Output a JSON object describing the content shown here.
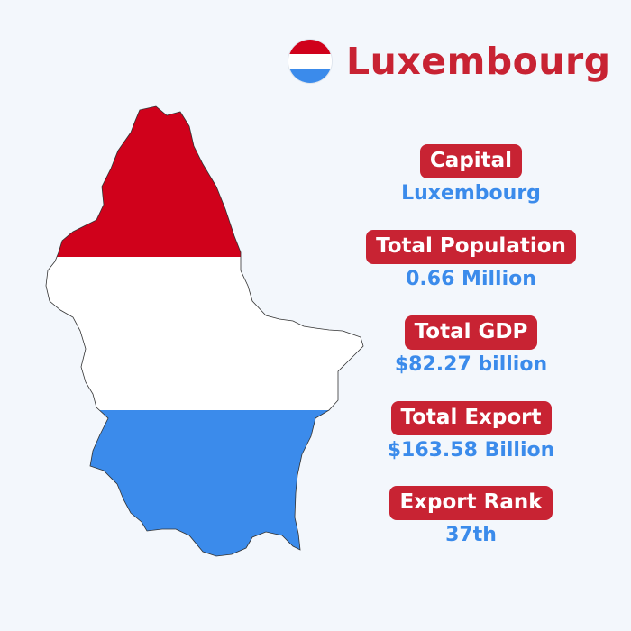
{
  "title": "Luxembourg",
  "flag_colors": {
    "red": "#d0011b",
    "white": "#ffffff",
    "blue": "#3b8beb"
  },
  "colors": {
    "badge": "#c82333",
    "value": "#3b8beb",
    "background": "#f3f7fc"
  },
  "stats": [
    {
      "label": "Capital",
      "value": "Luxembourg"
    },
    {
      "label": "Total Population",
      "value": "0.66 Million"
    },
    {
      "label": "Total GDP",
      "value": "$82.27 billion"
    },
    {
      "label": "Total Export",
      "value": "$163.58 Billion"
    },
    {
      "label": "Export Rank",
      "value": "37th"
    }
  ]
}
